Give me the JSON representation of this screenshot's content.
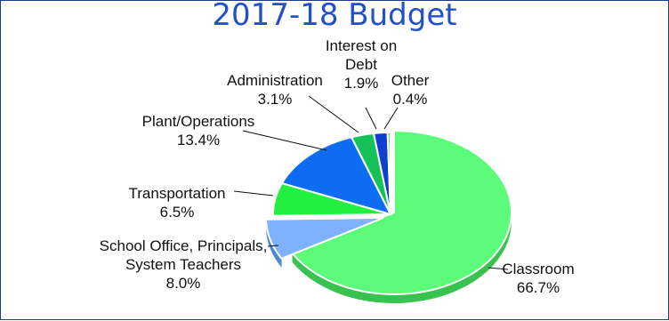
{
  "chart_data": {
    "type": "pie",
    "title": "2017-18 Budget",
    "slices": [
      {
        "label_lines": [
          "Classroom",
          "66.7%"
        ],
        "value": 66.7,
        "color": "#5cfb7a",
        "side": "#38c250",
        "exploded": true
      },
      {
        "label_lines": [
          "School Office, Principals,",
          "System Teachers",
          "8.0%"
        ],
        "value": 8.0,
        "color": "#7fb2fb",
        "side": "#4f86d6",
        "exploded": true
      },
      {
        "label_lines": [
          "Transportation",
          "6.5%"
        ],
        "value": 6.5,
        "color": "#22f040",
        "side": "#16b02c",
        "exploded": false
      },
      {
        "label_lines": [
          "Plant/Operations",
          "13.4%"
        ],
        "value": 13.4,
        "color": "#0d6df2",
        "side": "#0a4fb5",
        "exploded": false
      },
      {
        "label_lines": [
          "Administration",
          "3.1%"
        ],
        "value": 3.1,
        "color": "#16c15a",
        "side": "#0f8f42",
        "exploded": false
      },
      {
        "label_lines": [
          "Interest on",
          "Debt",
          "1.9%"
        ],
        "value": 1.9,
        "color": "#0f3fce",
        "side": "#0a2d94",
        "exploded": false
      },
      {
        "label_lines": [
          "Other",
          "0.4%"
        ],
        "value": 0.4,
        "color": "#7fd07f",
        "side": "#5aa85a",
        "exploded": false
      }
    ]
  }
}
